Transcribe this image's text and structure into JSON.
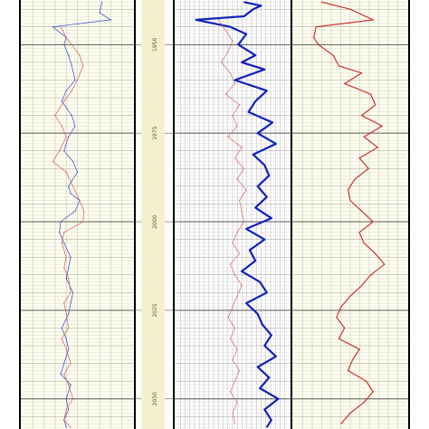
{
  "chart_data": {
    "type": "line",
    "depth_axis": {
      "ticks": [
        1950,
        1975,
        2000,
        2025,
        2050
      ],
      "tick_labels": [
        "1950",
        "1975",
        "2000",
        "2025",
        "2050"
      ]
    },
    "depth_range": [
      1937.4,
      2058.5
    ],
    "grid": true,
    "tracks": [
      {
        "id": "track1",
        "series": [
          {
            "color": "#3344cc",
            "style": "thin",
            "scale": [
              0,
              100
            ],
            "depth": [
              1938,
              1941,
              1943,
              1945,
              1948,
              1950,
              1953,
              1956,
              1960,
              1963,
              1966,
              1970,
              1973,
              1976,
              1980,
              1983,
              1986,
              1990,
              1992,
              1994,
              1997,
              2000,
              2003,
              2006,
              2010,
              2013,
              2016,
              2020,
              2023,
              2026,
              2030,
              2033,
              2036,
              2040,
              2043,
              2046,
              2050,
              2053,
              2056,
              2058
            ],
            "values": [
              72,
              70,
              80,
              28,
              40,
              38,
              42,
              45,
              48,
              40,
              36,
              45,
              48,
              42,
              38,
              46,
              50,
              42,
              44,
              52,
              48,
              35,
              34,
              38,
              44,
              42,
              40,
              46,
              44,
              42,
              36,
              40,
              42,
              38,
              35,
              44,
              40,
              42,
              38,
              40
            ]
          },
          {
            "color": "#dd5555",
            "style": "thin",
            "scale": [
              0,
              100
            ],
            "depth": [
              1945,
              1948,
              1950,
              1953,
              1956,
              1960,
              1963,
              1966,
              1970,
              1973,
              1976,
              1980,
              1983,
              1986,
              1990,
              1994,
              1997,
              2000,
              2003,
              2006,
              2010,
              2013,
              2016,
              2020,
              2023,
              2026,
              2030,
              2033,
              2036,
              2040,
              2043,
              2046,
              2050,
              2053,
              2056,
              2058
            ],
            "values": [
              35,
              40,
              45,
              52,
              55,
              50,
              45,
              38,
              30,
              36,
              40,
              34,
              28,
              40,
              46,
              52,
              56,
              55,
              38,
              36,
              40,
              38,
              42,
              44,
              38,
              40,
              42,
              36,
              40,
              44,
              38,
              42,
              46,
              40,
              38,
              44
            ]
          }
        ]
      },
      {
        "id": "track2",
        "series": [
          {
            "color": "#1122bb",
            "style": "thick",
            "scale": [
              0,
              100
            ],
            "depth": [
              1938,
              1939,
              1940,
              1942,
              1943,
              1945,
              1947,
              1950,
              1953,
              1955,
              1957,
              1960,
              1963,
              1966,
              1969,
              1972,
              1975,
              1978,
              1981,
              1984,
              1987,
              1990,
              1993,
              1996,
              1999,
              2002,
              2005,
              2008,
              2011,
              2014,
              2017,
              2020,
              2023,
              2026,
              2029,
              2032,
              2035,
              2038,
              2041,
              2044,
              2047,
              2050,
              2053,
              2056,
              2058
            ],
            "values": [
              60,
              75,
              68,
              60,
              18,
              48,
              62,
              55,
              70,
              58,
              78,
              52,
              80,
              70,
              64,
              85,
              72,
              88,
              68,
              78,
              82,
              72,
              80,
              70,
              84,
              62,
              78,
              65,
              70,
              58,
              74,
              80,
              62,
              72,
              76,
              84,
              78,
              88,
              72,
              82,
              74,
              90,
              78,
              84,
              80
            ]
          },
          {
            "color": "#dd6666",
            "style": "thin",
            "scale": [
              0,
              100
            ],
            "depth": [
              1943,
              1946,
              1949,
              1952,
              1955,
              1958,
              1961,
              1964,
              1967,
              1970,
              1973,
              1976,
              1979,
              1982,
              1985,
              1988,
              1991,
              1994,
              1997,
              2000,
              2003,
              2006,
              2009,
              2012,
              2015,
              2018,
              2021,
              2024,
              2027,
              2030,
              2033,
              2036,
              2039,
              2042,
              2045,
              2048,
              2051,
              2054,
              2057
            ],
            "values": [
              38,
              44,
              50,
              46,
              40,
              48,
              52,
              44,
              56,
              50,
              54,
              46,
              58,
              52,
              60,
              54,
              62,
              56,
              58,
              60,
              54,
              50,
              56,
              48,
              52,
              58,
              54,
              50,
              46,
              52,
              48,
              54,
              50,
              56,
              52,
              48,
              54,
              50,
              52
            ]
          }
        ]
      },
      {
        "id": "track3",
        "series": [
          {
            "color": "#cc2222",
            "style": "medium",
            "scale": [
              0,
              100
            ],
            "depth": [
              1938,
              1940,
              1943,
              1945,
              1948,
              1950,
              1953,
              1956,
              1958,
              1961,
              1964,
              1967,
              1970,
              1973,
              1976,
              1979,
              1982,
              1985,
              1988,
              1991,
              1994,
              1997,
              2000,
              2003,
              2006,
              2009,
              2012,
              2015,
              2018,
              2021,
              2024,
              2027,
              2030,
              2033,
              2036,
              2039,
              2042,
              2045,
              2048,
              2051,
              2054,
              2057
            ],
            "values": [
              25,
              50,
              70,
              20,
              18,
              22,
              35,
              40,
              60,
              45,
              68,
              72,
              60,
              78,
              62,
              74,
              58,
              66,
              54,
              48,
              50,
              60,
              70,
              58,
              62,
              72,
              80,
              68,
              60,
              50,
              42,
              38,
              45,
              40,
              58,
              52,
              48,
              64,
              70,
              62,
              50,
              42
            ]
          }
        ]
      }
    ]
  }
}
